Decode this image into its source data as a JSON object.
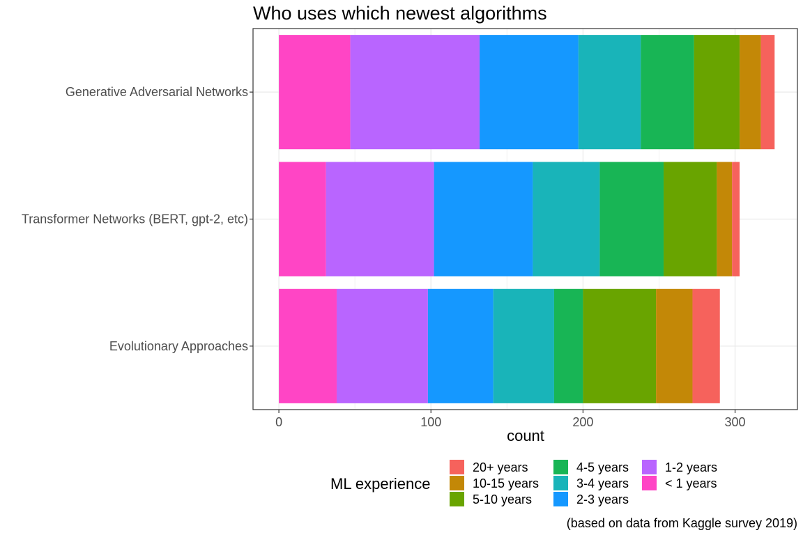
{
  "chart_data": {
    "type": "bar",
    "orientation": "horizontal",
    "stacked": true,
    "title": "Who uses which newest algorithms",
    "xlabel": "count",
    "ylabel": "",
    "xlim": [
      -17,
      341
    ],
    "x_ticks": [
      0,
      100,
      200,
      300
    ],
    "grid": true,
    "legend_position": "bottom",
    "legend_title": "ML experience",
    "caption": "(based on data from Kaggle survey 2019)",
    "categories": [
      "Generative Adversarial Networks",
      "Transformer Networks (BERT, gpt-2, etc)",
      "Evolutionary Approaches"
    ],
    "series": [
      {
        "name": "< 1 years",
        "color": "#FF45C5",
        "values": [
          47,
          31,
          38
        ]
      },
      {
        "name": "1-2 years",
        "color": "#B965FF",
        "values": [
          85,
          71,
          60
        ]
      },
      {
        "name": "2-3 years",
        "color": "#1598FF",
        "values": [
          65,
          65,
          43
        ]
      },
      {
        "name": "3-4 years",
        "color": "#19B4B9",
        "values": [
          41,
          44,
          40
        ]
      },
      {
        "name": "4-5 years",
        "color": "#18B555",
        "values": [
          35,
          42,
          19
        ]
      },
      {
        "name": "5-10 years",
        "color": "#69A400",
        "values": [
          30,
          35,
          48
        ]
      },
      {
        "name": "10-15 years",
        "color": "#C38807",
        "values": [
          14,
          10,
          24
        ]
      },
      {
        "name": "20+ years",
        "color": "#F6625C",
        "values": [
          9,
          5,
          18
        ]
      }
    ],
    "legend_order": [
      "20+ years",
      "10-15 years",
      "5-10 years",
      "4-5 years",
      "3-4 years",
      "2-3 years",
      "1-2 years",
      "< 1 years"
    ]
  }
}
